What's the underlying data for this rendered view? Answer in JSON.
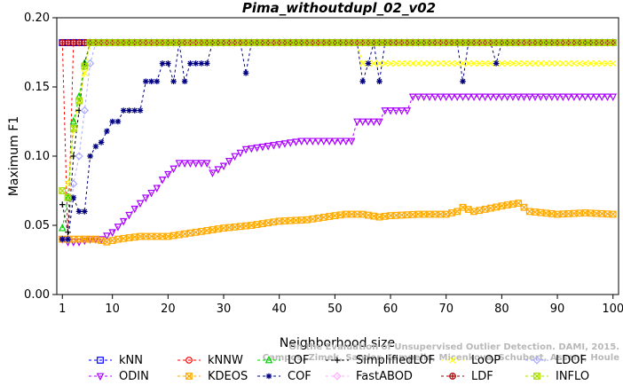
{
  "chart_data": {
    "type": "line",
    "title": "Pima_withoutdupl_02_v02",
    "xlabel": "Neighborhood size",
    "ylabel": "Maximum F1",
    "xlim": [
      0,
      101
    ],
    "ylim": [
      0,
      0.2
    ],
    "xticks": [
      1,
      10,
      20,
      30,
      40,
      50,
      60,
      70,
      80,
      90,
      100
    ],
    "yticks": [
      0.0,
      0.05,
      0.1,
      0.15,
      0.2
    ],
    "ytick_labels": [
      "0.00",
      "0.05",
      "0.10",
      "0.15",
      "0.20"
    ],
    "grid": false,
    "legend_position": "bottom",
    "credit_lines": [
      "Campos, Zimek, Sander, Campello, Micenkova, Schubert, Assent, Houle",
      "On the Evaluation of Unsupervised Outlier Detection. DAMI, 2015."
    ],
    "series": [
      {
        "name": "kNN",
        "color": "#0000ff",
        "marker": "square",
        "x": [
          1,
          100
        ],
        "y": [
          0.182,
          0.182
        ]
      },
      {
        "name": "kNNW",
        "color": "#ff0000",
        "marker": "circle",
        "x": [
          1,
          2,
          3,
          100
        ],
        "y": [
          0.182,
          0.04,
          0.182,
          0.182
        ]
      },
      {
        "name": "LOF",
        "color": "#00cc00",
        "marker": "triangle-up",
        "x": [
          1,
          2,
          3,
          4,
          5,
          6,
          100
        ],
        "y": [
          0.048,
          0.07,
          0.125,
          0.143,
          0.167,
          0.182,
          0.182
        ]
      },
      {
        "name": "SimplifiedLOF",
        "color": "#000000",
        "marker": "plus",
        "x": [
          1,
          2,
          3,
          4,
          5,
          6,
          100
        ],
        "y": [
          0.065,
          0.045,
          0.1,
          0.133,
          0.167,
          0.182,
          0.182
        ]
      },
      {
        "name": "LoOP",
        "color": "#ffff00",
        "marker": "x",
        "x": [
          1,
          2,
          3,
          4,
          5,
          6,
          54,
          55,
          100
        ],
        "y": [
          0.075,
          0.08,
          0.12,
          0.14,
          0.16,
          0.182,
          0.182,
          0.167,
          0.167
        ]
      },
      {
        "name": "LDOF",
        "color": "#aaaaff",
        "marker": "diamond",
        "x": [
          1,
          2,
          3,
          4,
          5,
          6,
          7,
          100
        ],
        "y": [
          0.04,
          0.04,
          0.08,
          0.1,
          0.133,
          0.167,
          0.182,
          0.182
        ]
      },
      {
        "name": "ODIN",
        "color": "#aa00ff",
        "marker": "triangle-down",
        "x": [
          1,
          2,
          4,
          6,
          8,
          10,
          12,
          14,
          16,
          18,
          19,
          22,
          27,
          28,
          30,
          32,
          34,
          44,
          53,
          54,
          58,
          59,
          63,
          64,
          100
        ],
        "y": [
          0.04,
          0.038,
          0.038,
          0.04,
          0.04,
          0.045,
          0.053,
          0.062,
          0.07,
          0.077,
          0.083,
          0.095,
          0.095,
          0.088,
          0.093,
          0.1,
          0.105,
          0.111,
          0.111,
          0.125,
          0.125,
          0.133,
          0.133,
          0.143,
          0.143
        ]
      },
      {
        "name": "KDEOS",
        "color": "#ffaa00",
        "marker": "square-x",
        "x": [
          1,
          3,
          5,
          7,
          9,
          11,
          15,
          20,
          25,
          30,
          35,
          40,
          45,
          50,
          52,
          55,
          58,
          60,
          65,
          70,
          72,
          73,
          75,
          80,
          83,
          85,
          90,
          95,
          100
        ],
        "y": [
          0.04,
          0.04,
          0.04,
          0.04,
          0.038,
          0.04,
          0.042,
          0.042,
          0.045,
          0.048,
          0.05,
          0.053,
          0.054,
          0.057,
          0.058,
          0.058,
          0.056,
          0.057,
          0.058,
          0.058,
          0.06,
          0.063,
          0.06,
          0.064,
          0.066,
          0.06,
          0.058,
          0.059,
          0.058
        ]
      },
      {
        "name": "COF",
        "color": "#000080",
        "marker": "star",
        "x": [
          1,
          2,
          3,
          4,
          5,
          6,
          7,
          8,
          9,
          10,
          11,
          12,
          13,
          14,
          15,
          16,
          17,
          18,
          19,
          20,
          21,
          22,
          23,
          24,
          25,
          26,
          27,
          28,
          33,
          34,
          35,
          54,
          55,
          56,
          57,
          58,
          59,
          72,
          73,
          74,
          78,
          79,
          80,
          100
        ],
        "y": [
          0.04,
          0.04,
          0.07,
          0.06,
          0.06,
          0.1,
          0.107,
          0.11,
          0.118,
          0.125,
          0.125,
          0.133,
          0.133,
          0.133,
          0.133,
          0.154,
          0.154,
          0.154,
          0.167,
          0.167,
          0.154,
          0.182,
          0.154,
          0.167,
          0.167,
          0.167,
          0.167,
          0.182,
          0.182,
          0.16,
          0.182,
          0.182,
          0.154,
          0.167,
          0.182,
          0.154,
          0.182,
          0.182,
          0.154,
          0.182,
          0.182,
          0.167,
          0.182,
          0.182
        ]
      },
      {
        "name": "FastABOD",
        "color": "#ffaaff",
        "marker": "diamond",
        "x": [
          1,
          100
        ],
        "y": [
          0.182,
          0.182
        ]
      },
      {
        "name": "LDF",
        "color": "#aa0000",
        "marker": "circle-plus",
        "x": [
          1,
          100
        ],
        "y": [
          0.182,
          0.182
        ]
      },
      {
        "name": "INFLO",
        "color": "#aadd00",
        "marker": "square-x",
        "x": [
          1,
          2,
          3,
          4,
          5,
          6,
          100
        ],
        "y": [
          0.075,
          0.07,
          0.12,
          0.14,
          0.165,
          0.182,
          0.182
        ]
      }
    ]
  }
}
